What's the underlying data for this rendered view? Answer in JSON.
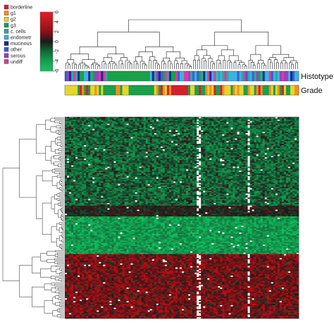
{
  "chart_data": {
    "type": "heatmap",
    "title": "",
    "colorbar": {
      "ticks": [
        "6",
        "4",
        "2",
        "0",
        "-2",
        "-4",
        "-6"
      ],
      "values": [
        6,
        4,
        2,
        0,
        -2,
        -4,
        -6
      ],
      "colors": [
        "#e0202a",
        "#b81822",
        "#8a1015",
        "#1a1a1a",
        "#0f6a35",
        "#14a050",
        "#1ec060"
      ]
    },
    "legend": {
      "placement": "top-left",
      "items": [
        {
          "label": "borderline",
          "color": "#d4202c"
        },
        {
          "label": "g1",
          "color": "#f4901c"
        },
        {
          "label": "g2",
          "color": "#e6d62a"
        },
        {
          "label": "g3",
          "color": "#1aa04a"
        },
        {
          "label": "c. cells",
          "color": "#2ca8a0"
        },
        {
          "label": "endometr",
          "color": "#3ab4e0"
        },
        {
          "label": "mucinous",
          "color": "#1c2c8c"
        },
        {
          "label": "other",
          "color": "#3a5cd8"
        },
        {
          "label": "serous",
          "color": "#9c3cc4"
        },
        {
          "label": "undiff",
          "color": "#d83c9c"
        }
      ]
    },
    "annotation_bars": [
      {
        "name": "Histotype"
      },
      {
        "name": "Grade"
      }
    ],
    "row_blocks": [
      {
        "fraction": 0.44,
        "trend": "green"
      },
      {
        "fraction": 0.05,
        "trend": "mixed"
      },
      {
        "fraction": 0.19,
        "trend": "bright-green"
      },
      {
        "fraction": 0.32,
        "trend": "red"
      }
    ]
  }
}
